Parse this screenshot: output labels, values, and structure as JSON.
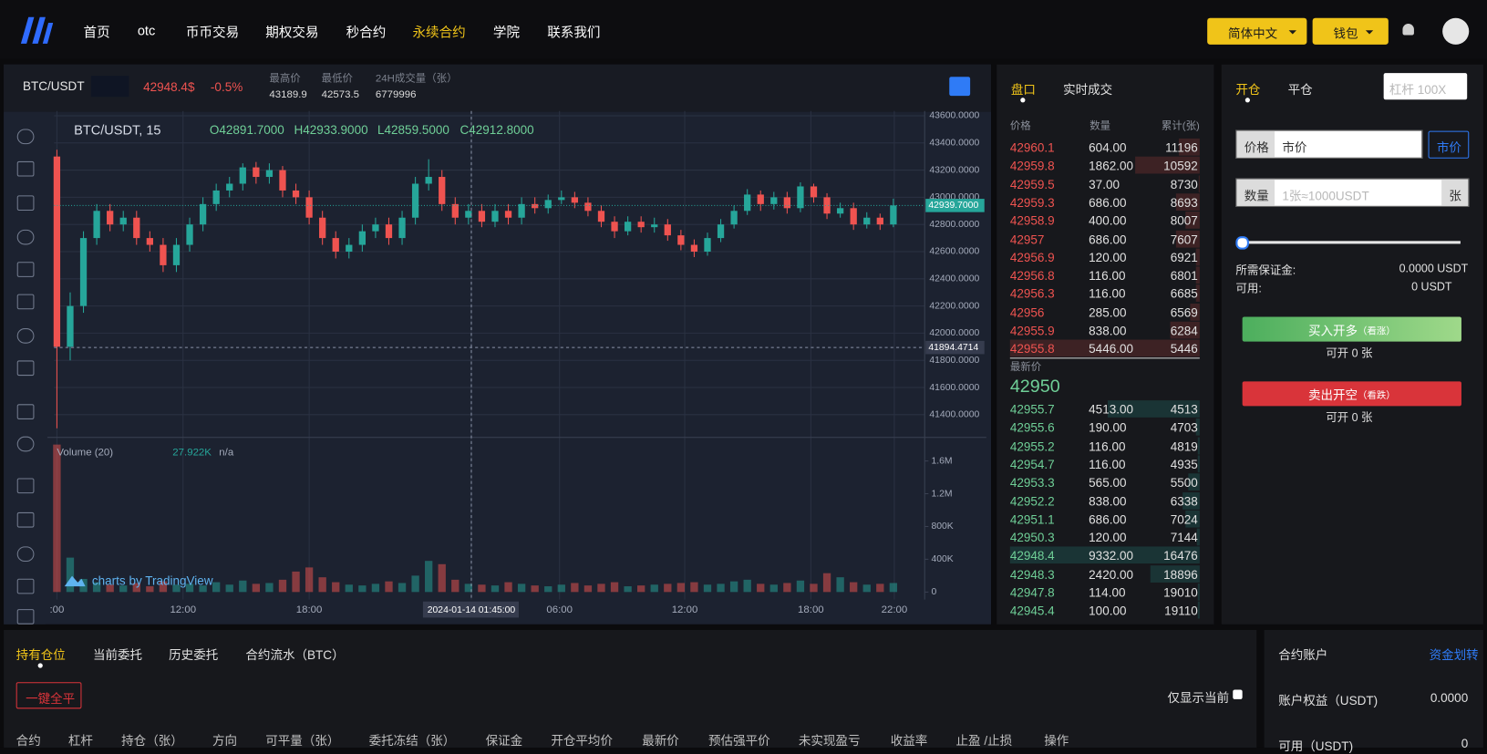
{
  "nav": {
    "items": [
      "首页",
      "otc",
      "币币交易",
      "期权交易",
      "秒合约",
      "永续合约",
      "学院",
      "联系我们"
    ],
    "active": 5,
    "language": "简体中文",
    "wallet": "钱包"
  },
  "ticker": {
    "symbol": "BTC/USDT",
    "price": "42948.4$",
    "change": "-0.5%",
    "stats": [
      {
        "label": "最高价",
        "value": "43189.9"
      },
      {
        "label": "最低价",
        "value": "42573.5"
      },
      {
        "label": "24H成交量（张）",
        "value": "6779996"
      }
    ]
  },
  "chart": {
    "title": "BTC/USDT, 15",
    "ohlc": [
      "O42891.7000",
      "H42933.9000",
      "L42859.5000",
      "C42912.8000"
    ],
    "ylim": [
      41240,
      43635
    ],
    "yticks": [
      {
        "value": 43600,
        "label": "43600.0000"
      },
      {
        "value": 43400,
        "label": "43400.0000"
      },
      {
        "value": 43200,
        "label": "43200.0000"
      },
      {
        "value": 43000,
        "label": "43000.0000"
      },
      {
        "value": 42800,
        "label": "42800.0000"
      },
      {
        "value": 42600,
        "label": "42600.0000"
      },
      {
        "value": 42400,
        "label": "42400.0000"
      },
      {
        "value": 42200,
        "label": "42200.0000"
      },
      {
        "value": 42000,
        "label": "42000.0000"
      },
      {
        "value": 41800,
        "label": "41800.0000"
      },
      {
        "value": 41600,
        "label": "41600.0000"
      },
      {
        "value": 41400,
        "label": "41400.0000"
      }
    ],
    "last_price": {
      "value": 42939.7,
      "label": "42939.7000"
    },
    "crosshair": {
      "value": 41894.4714,
      "label": "41894.4714"
    },
    "xlabels": [
      ":00",
      "12:00",
      "18:00",
      "2024-01-14 01:45:00",
      "06:00",
      "12:00",
      "18:00",
      "22:00"
    ],
    "up_color": "#26a69a",
    "down_color": "#ef5350",
    "candles": [
      [
        43300,
        43350,
        41300,
        41900
      ],
      [
        41900,
        42300,
        41800,
        42200
      ],
      [
        42200,
        42750,
        42150,
        42700
      ],
      [
        42700,
        42950,
        42650,
        42900
      ],
      [
        42900,
        42950,
        42750,
        42800
      ],
      [
        42800,
        42900,
        42750,
        42850
      ],
      [
        42850,
        42900,
        42650,
        42700
      ],
      [
        42700,
        42750,
        42600,
        42650
      ],
      [
        42650,
        42700,
        42450,
        42500
      ],
      [
        42500,
        42700,
        42450,
        42650
      ],
      [
        42650,
        42850,
        42600,
        42800
      ],
      [
        42800,
        43000,
        42750,
        42950
      ],
      [
        42950,
        43100,
        42900,
        43050
      ],
      [
        43050,
        43150,
        43000,
        43100
      ],
      [
        43100,
        43250,
        43050,
        43220
      ],
      [
        43220,
        43260,
        43100,
        43150
      ],
      [
        43150,
        43250,
        43100,
        43200
      ],
      [
        43200,
        43230,
        43000,
        43050
      ],
      [
        43050,
        43100,
        42950,
        43000
      ],
      [
        43000,
        43050,
        42800,
        42850
      ],
      [
        42850,
        42900,
        42650,
        42700
      ],
      [
        42700,
        42750,
        42550,
        42600
      ],
      [
        42600,
        42700,
        42550,
        42650
      ],
      [
        42650,
        42800,
        42600,
        42750
      ],
      [
        42750,
        42850,
        42700,
        42800
      ],
      [
        42800,
        42850,
        42650,
        42700
      ],
      [
        42700,
        42900,
        42650,
        42850
      ],
      [
        42850,
        43150,
        42800,
        43100
      ],
      [
        43100,
        43280,
        43050,
        43150
      ],
      [
        43150,
        43200,
        42900,
        42950
      ],
      [
        42950,
        43000,
        42800,
        42850
      ],
      [
        42850,
        42950,
        42800,
        42900
      ],
      [
        42900,
        42950,
        42780,
        42820
      ],
      [
        42820,
        42950,
        42780,
        42900
      ],
      [
        42900,
        42950,
        42800,
        42850
      ],
      [
        42850,
        43000,
        42800,
        42950
      ],
      [
        42950,
        43000,
        42880,
        42920
      ],
      [
        42920,
        43020,
        42880,
        42980
      ],
      [
        42980,
        43050,
        42950,
        43000
      ],
      [
        43000,
        43040,
        42920,
        42960
      ],
      [
        42960,
        43000,
        42860,
        42900
      ],
      [
        42900,
        42940,
        42780,
        42820
      ],
      [
        42820,
        42860,
        42700,
        42750
      ],
      [
        42750,
        42860,
        42720,
        42820
      ],
      [
        42820,
        42860,
        42740,
        42780
      ],
      [
        42780,
        42850,
        42740,
        42800
      ],
      [
        42800,
        42840,
        42680,
        42720
      ],
      [
        42720,
        42760,
        42610,
        42650
      ],
      [
        42650,
        42690,
        42560,
        42600
      ],
      [
        42600,
        42740,
        42570,
        42700
      ],
      [
        42700,
        42840,
        42670,
        42800
      ],
      [
        42800,
        42940,
        42770,
        42900
      ],
      [
        42900,
        43060,
        42870,
        43020
      ],
      [
        43020,
        43050,
        42900,
        42950
      ],
      [
        42950,
        43040,
        42910,
        43000
      ],
      [
        43000,
        43040,
        42880,
        42920
      ],
      [
        42920,
        43110,
        42890,
        43080
      ],
      [
        43080,
        43100,
        42960,
        43000
      ],
      [
        43000,
        43030,
        42840,
        42880
      ],
      [
        42880,
        42960,
        42850,
        42920
      ],
      [
        42920,
        42960,
        42760,
        42800
      ],
      [
        42800,
        42890,
        42770,
        42850
      ],
      [
        42850,
        42880,
        42760,
        42800
      ],
      [
        42800,
        42990,
        42780,
        42940
      ]
    ],
    "volume": {
      "label": "Volume (20)",
      "last": "27.922K",
      "na": "n/a",
      "ylim": [
        0,
        1830000
      ],
      "yticks": [
        {
          "value": 1600000,
          "label": "1.6M"
        },
        {
          "value": 1200000,
          "label": "1.2M"
        },
        {
          "value": 800000,
          "label": "800K"
        },
        {
          "value": 400000,
          "label": "400K"
        },
        0
      ],
      "values": [
        1800000,
        420000,
        160000,
        120000,
        90000,
        80000,
        110000,
        70000,
        130000,
        90000,
        100000,
        80000,
        120000,
        90000,
        140000,
        100000,
        110000,
        150000,
        250000,
        300000,
        180000,
        120000,
        90000,
        80000,
        100000,
        130000,
        110000,
        200000,
        380000,
        340000,
        150000,
        100000,
        90000,
        80000,
        120000,
        100000,
        80000,
        70000,
        90000,
        110000,
        80000,
        100000,
        120000,
        70000,
        80000,
        90000,
        100000,
        110000,
        120000,
        90000,
        100000,
        130000,
        150000,
        100000,
        90000,
        110000,
        140000,
        100000,
        230000,
        180000,
        120000,
        90000,
        100000,
        110000
      ]
    },
    "watermark": "charts by TradingView"
  },
  "orderbook": {
    "tabs": [
      "盘口",
      "实时成交"
    ],
    "headers": [
      "价格",
      "数量",
      "累计(张)"
    ],
    "asks": [
      [
        "42960.1",
        "604.00",
        "11196"
      ],
      [
        "42959.8",
        "1862.00",
        "10592"
      ],
      [
        "42959.5",
        "37.00",
        "8730"
      ],
      [
        "42959.3",
        "686.00",
        "8693"
      ],
      [
        "42958.9",
        "400.00",
        "8007"
      ],
      [
        "42957",
        "686.00",
        "7607"
      ],
      [
        "42956.9",
        "120.00",
        "6921"
      ],
      [
        "42956.8",
        "116.00",
        "6801"
      ],
      [
        "42956.3",
        "116.00",
        "6685"
      ],
      [
        "42956",
        "285.00",
        "6569"
      ],
      [
        "42955.9",
        "838.00",
        "6284"
      ],
      [
        "42955.8",
        "5446.00",
        "5446"
      ]
    ],
    "latest_label": "最新价",
    "latest": "42950",
    "bids": [
      [
        "42955.7",
        "4513.00",
        "4513"
      ],
      [
        "42955.6",
        "190.00",
        "4703"
      ],
      [
        "42955.2",
        "116.00",
        "4819"
      ],
      [
        "42954.7",
        "116.00",
        "4935"
      ],
      [
        "42953.3",
        "565.00",
        "5500"
      ],
      [
        "42952.2",
        "838.00",
        "6338"
      ],
      [
        "42951.1",
        "686.00",
        "7024"
      ],
      [
        "42950.3",
        "120.00",
        "7144"
      ],
      [
        "42948.4",
        "9332.00",
        "16476"
      ],
      [
        "42948.3",
        "2420.00",
        "18896"
      ],
      [
        "42947.8",
        "114.00",
        "19010"
      ],
      [
        "42945.4",
        "100.00",
        "19110"
      ]
    ]
  },
  "trade": {
    "tabs": [
      "开仓",
      "平仓"
    ],
    "leverage_placeholder": "杠杆 100X",
    "price_label": "价格",
    "price_value": "市价",
    "price_button": "市价",
    "qty_label": "数量",
    "qty_placeholder": "1张≈1000USDT",
    "qty_unit": "张",
    "margin_label": "所需保证金:",
    "margin_value": "0.0000 USDT",
    "avail_label": "可用:",
    "avail_value": "0 USDT",
    "buy": "买入开多",
    "buy_hint": "（看涨）",
    "buy_sub": "可开 0 张",
    "sell": "卖出开空",
    "sell_hint": "（看跌）",
    "sell_sub": "可开 0 张"
  },
  "positions": {
    "tabs": [
      "持有仓位",
      "当前委托",
      "历史委托",
      "合约流水（BTC）"
    ],
    "close_all": "一键全平",
    "only_current": "仅显示当前",
    "columns": [
      "合约",
      "杠杆",
      "持仓（张）",
      "方向",
      "可平量（张）",
      "委托冻结（张）",
      "保证金",
      "开仓平均价",
      "最新价",
      "预估强平价",
      "未实现盈亏",
      "收益率",
      "止盈 /止损",
      "操作"
    ]
  },
  "account": {
    "title": "合约账户",
    "transfer": "资金划转",
    "rows": [
      {
        "label": "账户权益（USDT)",
        "value": "0.0000"
      },
      {
        "label": "可用（USDT)",
        "value": "0"
      }
    ]
  }
}
